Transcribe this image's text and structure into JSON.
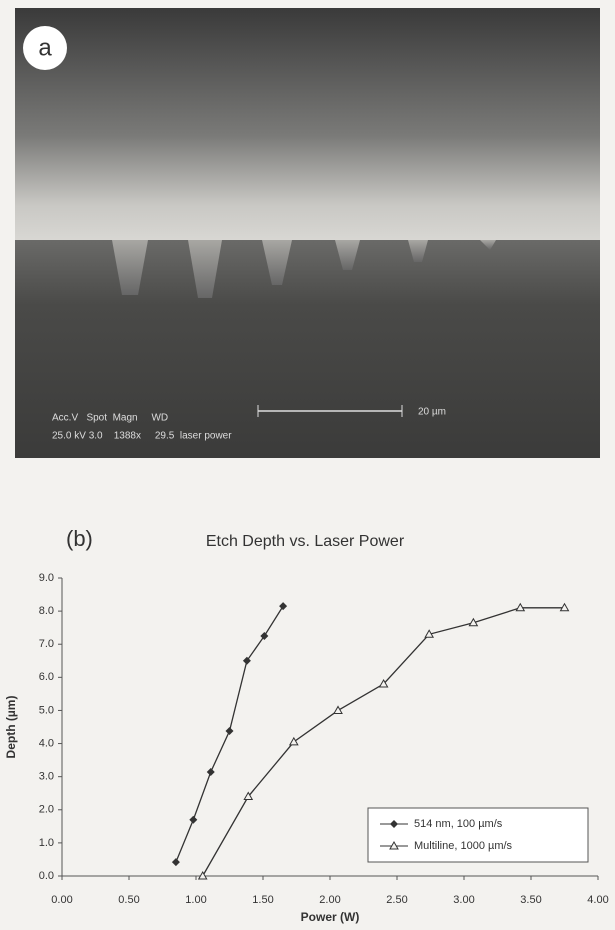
{
  "panel_a": {
    "label": "a",
    "sem_header": "Acc.V   Spot  Magn     WD",
    "sem_values": "25.0 kV 3.0    1388x     29.5  laser power",
    "scale_bar": "20 µm"
  },
  "chart_data": {
    "type": "line",
    "panel_label": "(b)",
    "title": "Etch Depth vs. Laser Power",
    "x_label": "Power (W)",
    "y_label": "Depth (µm)",
    "xlim": [
      0,
      4
    ],
    "ylim": [
      0,
      9
    ],
    "xticks": [
      {
        "value": 0,
        "label": "0.00"
      },
      {
        "value": 0.5,
        "label": "0.50"
      },
      {
        "value": 1,
        "label": "1.00"
      },
      {
        "value": 1.5,
        "label": "1.50"
      },
      {
        "value": 2,
        "label": "2.00"
      },
      {
        "value": 2.5,
        "label": "2.50"
      },
      {
        "value": 3,
        "label": "3.00"
      },
      {
        "value": 3.5,
        "label": "3.50"
      },
      {
        "value": 4,
        "label": "4.00"
      }
    ],
    "yticks": [
      {
        "value": 0,
        "label": "0.0"
      },
      {
        "value": 1,
        "label": "1.0"
      },
      {
        "value": 2,
        "label": "2.0"
      },
      {
        "value": 3,
        "label": "3.0"
      },
      {
        "value": 4,
        "label": "4.0"
      },
      {
        "value": 5,
        "label": "5.0"
      },
      {
        "value": 6,
        "label": "6.0"
      },
      {
        "value": 7,
        "label": "7.0"
      },
      {
        "value": 8,
        "label": "8.0"
      },
      {
        "value": 9,
        "label": "9.0"
      }
    ],
    "legend": "lower right",
    "grid": false,
    "series": [
      {
        "name": "514 nm, 100 µm/s",
        "color": "#333333",
        "marker": "diamond",
        "x": [
          0.85,
          0.98,
          1.11,
          1.25,
          1.38,
          1.51,
          1.65
        ],
        "values": [
          0.42,
          1.7,
          3.14,
          4.38,
          6.5,
          7.25,
          8.15
        ]
      },
      {
        "name": "Multiline, 1000 µm/s",
        "color": "#333333",
        "marker": "triangle",
        "x": [
          1.05,
          1.39,
          1.73,
          2.06,
          2.4,
          2.74,
          3.07,
          3.42,
          3.75
        ],
        "values": [
          0,
          2.4,
          4.05,
          5.0,
          5.8,
          7.3,
          7.65,
          8.1,
          8.1
        ]
      }
    ]
  }
}
